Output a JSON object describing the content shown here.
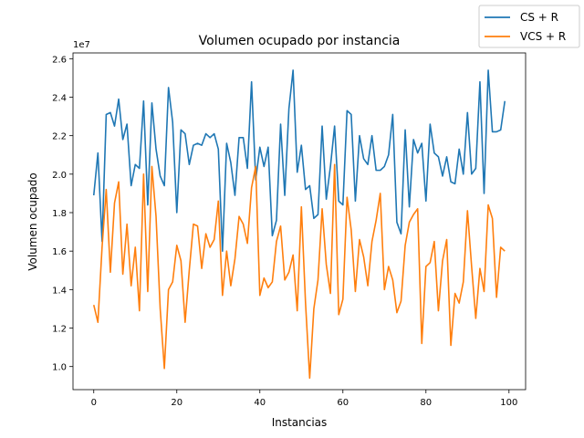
{
  "chart_data": {
    "type": "line",
    "title": "Volumen ocupado por instancia",
    "xlabel": "Instancias",
    "ylabel": "Volumen ocupado",
    "y_offset_label": "1e7",
    "xlim": [
      -5,
      104
    ],
    "ylim": [
      0.88,
      2.63
    ],
    "xticks": [
      0,
      20,
      40,
      60,
      80,
      100
    ],
    "xtick_labels": [
      "0",
      "20",
      "40",
      "60",
      "80",
      "100"
    ],
    "yticks": [
      1.0,
      1.2,
      1.4,
      1.6,
      1.8,
      2.0,
      2.2,
      2.4,
      2.6
    ],
    "ytick_labels": [
      "1.0",
      "1.2",
      "1.4",
      "1.6",
      "1.8",
      "2.0",
      "2.2",
      "2.4",
      "2.6"
    ],
    "grid": false,
    "legend_position": "top-right (outside axes)",
    "series": [
      {
        "name": "CS + R",
        "color": "#1f77b4",
        "values": [
          1.89,
          2.11,
          1.65,
          2.31,
          2.32,
          2.25,
          2.39,
          2.18,
          2.26,
          1.94,
          2.05,
          2.03,
          2.38,
          1.84,
          2.37,
          2.13,
          1.99,
          1.94,
          2.45,
          2.27,
          1.8,
          2.23,
          2.21,
          2.05,
          2.15,
          2.16,
          2.15,
          2.21,
          2.19,
          2.21,
          2.13,
          1.6,
          2.16,
          2.06,
          1.89,
          2.19,
          2.19,
          2.03,
          2.48,
          1.97,
          2.14,
          2.04,
          2.14,
          1.68,
          1.76,
          2.26,
          1.89,
          2.34,
          2.54,
          2.01,
          2.15,
          1.92,
          1.94,
          1.77,
          1.79,
          2.25,
          1.87,
          2.04,
          2.25,
          1.86,
          1.84,
          2.33,
          2.31,
          1.86,
          2.2,
          2.08,
          2.05,
          2.2,
          2.02,
          2.02,
          2.04,
          2.1,
          2.31,
          1.75,
          1.69,
          2.23,
          1.83,
          2.18,
          2.11,
          2.16,
          1.86,
          2.26,
          2.11,
          2.09,
          1.99,
          2.09,
          1.96,
          1.95,
          2.13,
          2.0,
          2.32,
          2.0,
          2.03,
          2.48,
          1.9,
          2.54,
          2.22,
          2.22,
          2.23,
          2.38
        ]
      },
      {
        "name": "VCS + R",
        "color": "#ff7f0e",
        "values": [
          1.32,
          1.23,
          1.62,
          1.92,
          1.49,
          1.85,
          1.96,
          1.48,
          1.74,
          1.42,
          1.62,
          1.29,
          2.0,
          1.39,
          2.04,
          1.78,
          1.3,
          0.99,
          1.4,
          1.44,
          1.63,
          1.55,
          1.23,
          1.5,
          1.74,
          1.73,
          1.51,
          1.69,
          1.62,
          1.66,
          1.86,
          1.37,
          1.6,
          1.42,
          1.56,
          1.78,
          1.74,
          1.64,
          1.93,
          2.04,
          1.37,
          1.46,
          1.41,
          1.44,
          1.65,
          1.73,
          1.45,
          1.49,
          1.58,
          1.29,
          1.83,
          1.33,
          0.94,
          1.3,
          1.45,
          1.82,
          1.53,
          1.38,
          2.05,
          1.27,
          1.35,
          1.88,
          1.71,
          1.39,
          1.66,
          1.57,
          1.42,
          1.65,
          1.76,
          1.9,
          1.4,
          1.52,
          1.45,
          1.28,
          1.34,
          1.63,
          1.75,
          1.79,
          1.82,
          1.12,
          1.52,
          1.54,
          1.65,
          1.29,
          1.55,
          1.66,
          1.11,
          1.38,
          1.33,
          1.44,
          1.81,
          1.52,
          1.25,
          1.51,
          1.39,
          1.84,
          1.77,
          1.36,
          1.62,
          1.6
        ]
      }
    ]
  }
}
